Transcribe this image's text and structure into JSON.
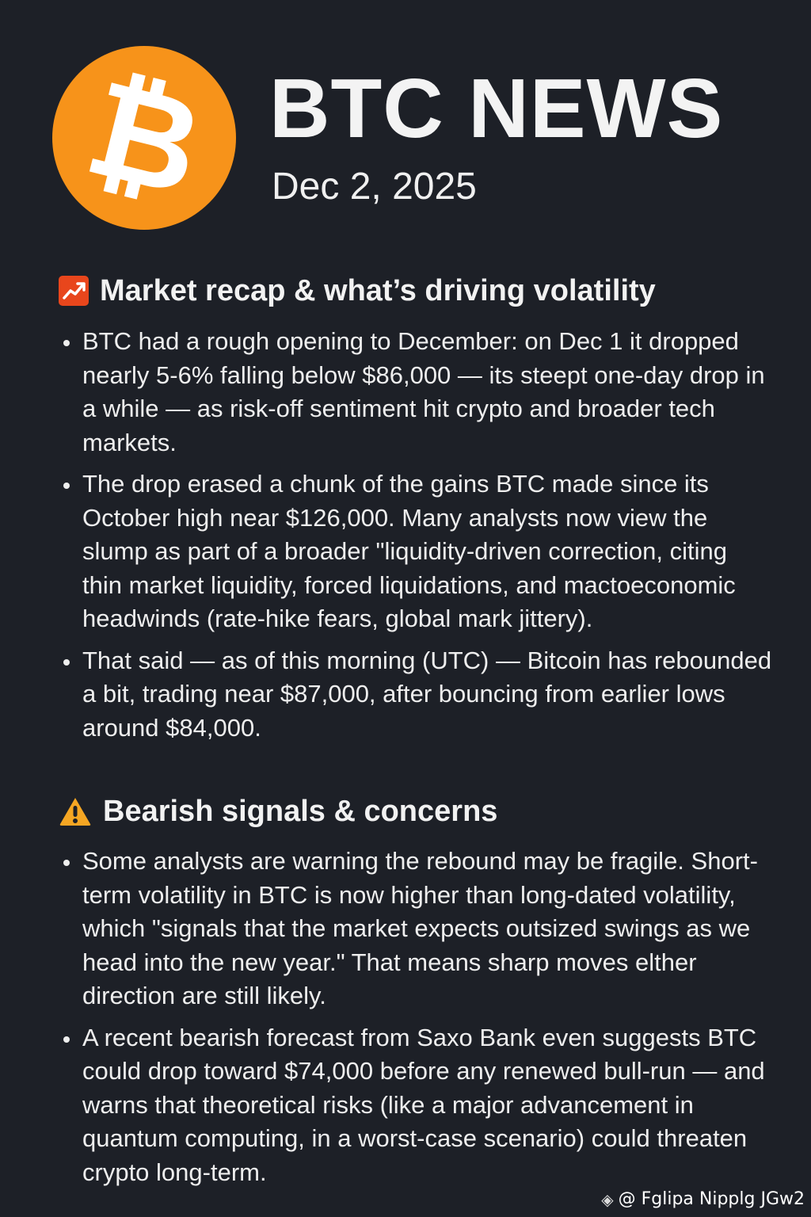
{
  "header": {
    "logo_symbol": "₿",
    "logo_color": "#f7931a",
    "title": "BTC NEWS",
    "date": "Dec 2, 2025"
  },
  "sections": [
    {
      "icon": "chart-increasing-icon",
      "heading": "Market recap & what’s driving volatility",
      "bullets": [
        "BTC had a rough opening to December: on Dec 1 it dropped nearly 5-6%  falling below $86,000 — its steept one-day drop in a while — as risk-off sentiment hit crypto and broader tech markets.",
        "The drop erased a chunk of the gains BTC made since its October high near $126,000. Many analysts now view the slump as part of a broader \"liquidity-driven correction, citing thin market liquidity, forced liquidations, and mactoeconomic headwinds (rate-hike fears, global mark jittery).",
        "That said — as of this morning (UTC) — Bitcoin has rebounded a bit, trading near $87,000, after bouncing from earlier lows around $84,000."
      ]
    },
    {
      "icon": "warning-icon",
      "heading": "Bearish signals & concerns",
      "bullets": [
        "Some analysts are warning the rebound may be fragile. Short-term volatility in BTC is now higher than long-dated volatility, which \"signals that the market expects outsized swings as we head into the new year.\" That means sharp moves elther direction are still likely.",
        "A recent bearish forecast from Saxo Bank even suggests BTC could drop toward $74,000 before any renewed bull-run — and warns that theoretical risks (like a major advancement in quantum computing, in a worst-case scenario) could threaten crypto long-term."
      ]
    }
  ],
  "watermark": {
    "icon": "binance-diamond-icon",
    "text": "@ Fglipa Nipplg JGw2"
  }
}
